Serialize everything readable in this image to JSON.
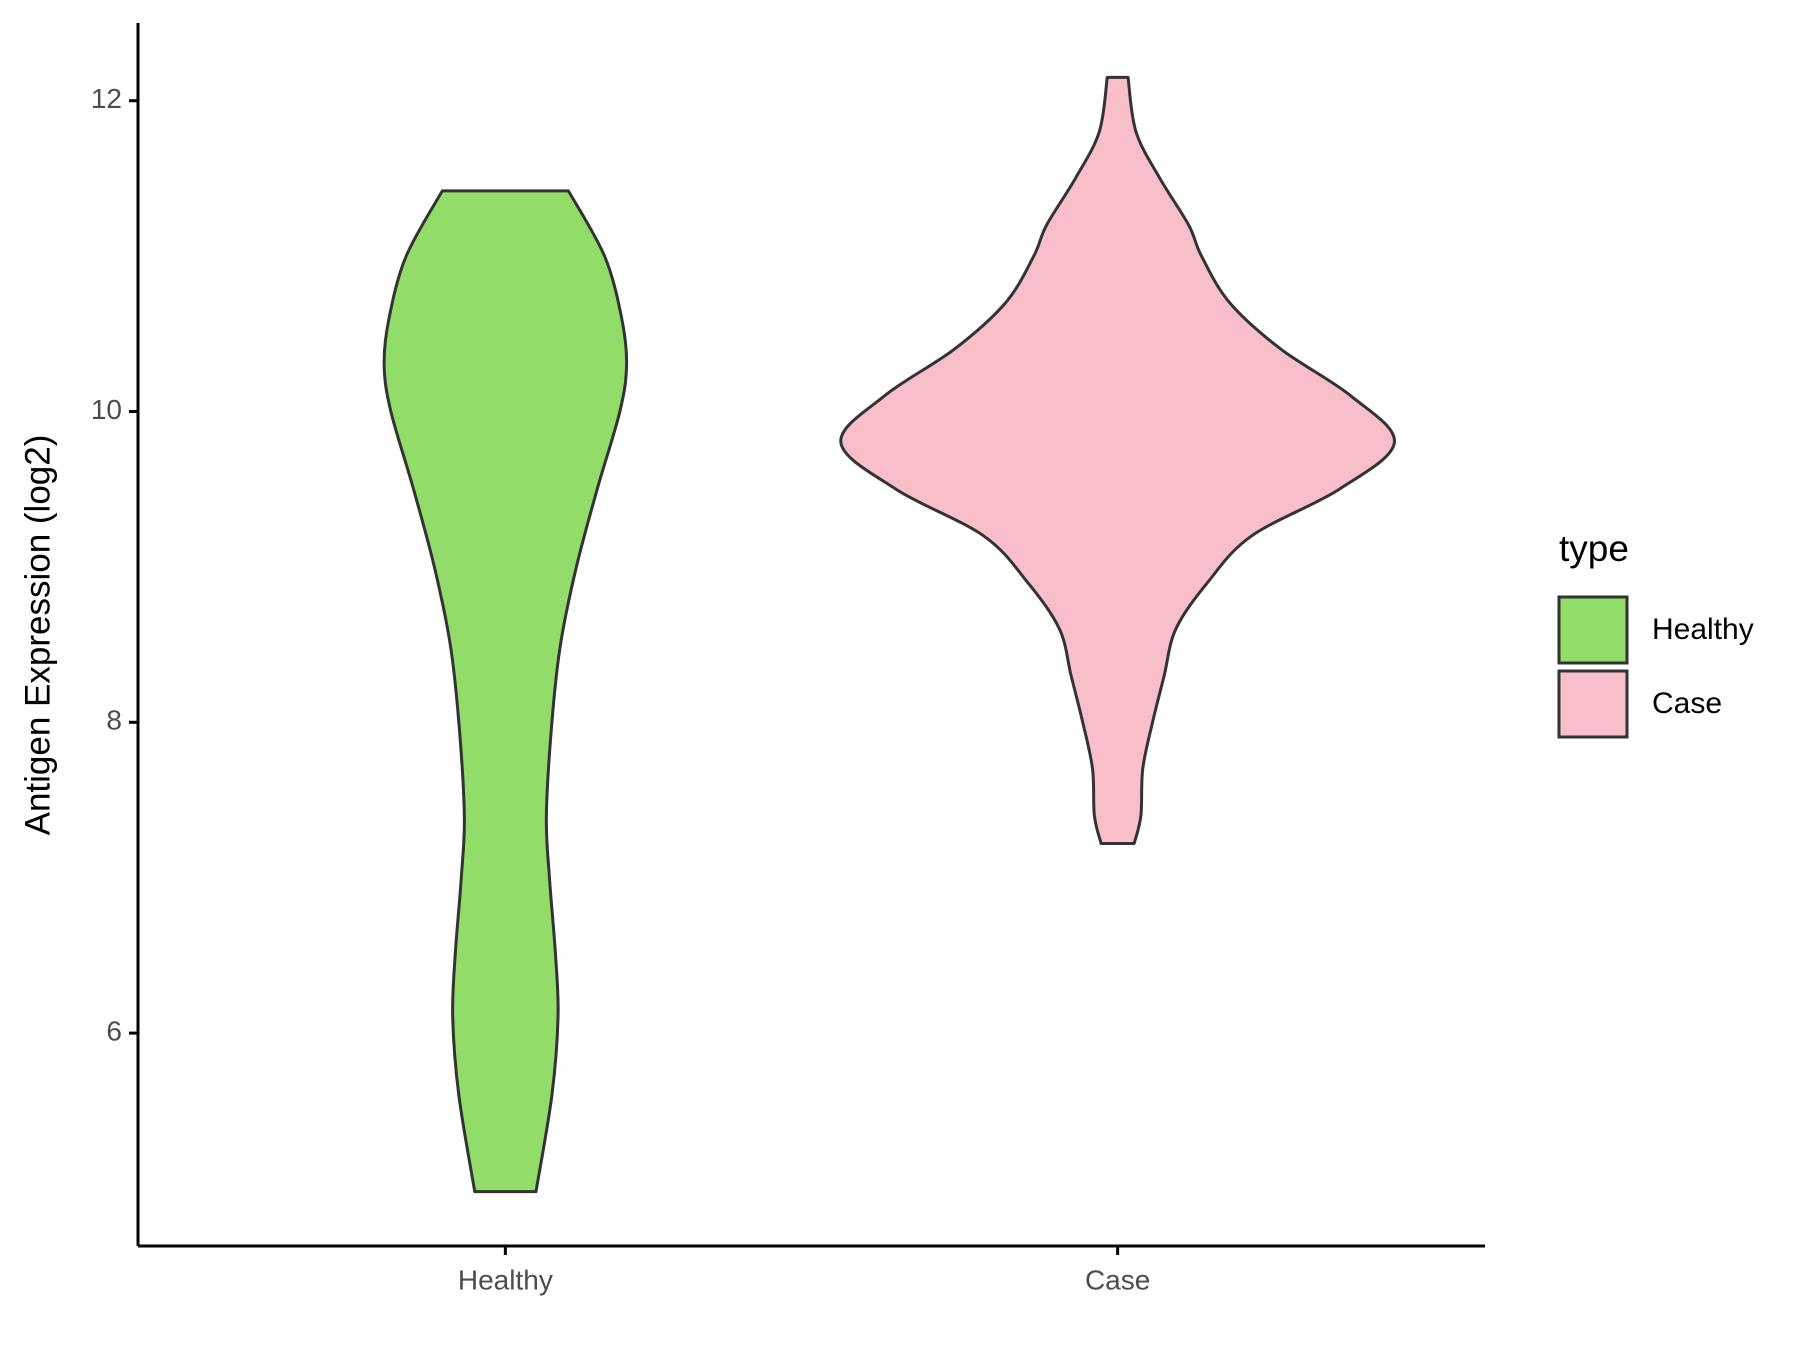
{
  "chart_data": {
    "type": "violin",
    "y_label": "Antigen Expression (log2)",
    "categories": [
      "Healthy",
      "Case"
    ],
    "legend_title": "type",
    "ylim": [
      4.63,
      12.5
    ],
    "yticks": [
      6,
      8,
      10,
      12
    ],
    "series": [
      {
        "name": "Healthy",
        "color": "#92dc6a",
        "y": [
          11.42,
          11.0,
          10.6,
          10.3,
          10.0,
          9.5,
          9.0,
          8.5,
          8.0,
          7.4,
          7.0,
          6.5,
          6.1,
          5.6,
          4.98
        ],
        "width": [
          0.103,
          0.162,
          0.19,
          0.198,
          0.187,
          0.15,
          0.116,
          0.09,
          0.076,
          0.067,
          0.072,
          0.082,
          0.086,
          0.076,
          0.05
        ]
      },
      {
        "name": "Case",
        "color": "#f8bfcb",
        "y": [
          12.15,
          11.8,
          11.5,
          11.2,
          11.0,
          10.7,
          10.4,
          10.1,
          9.8,
          9.5,
          9.2,
          8.9,
          8.6,
          8.3,
          8.0,
          7.7,
          7.4,
          7.22
        ],
        "width": [
          0.017,
          0.03,
          0.069,
          0.116,
          0.137,
          0.183,
          0.267,
          0.381,
          0.452,
          0.362,
          0.219,
          0.147,
          0.095,
          0.076,
          0.057,
          0.041,
          0.038,
          0.027
        ]
      }
    ]
  }
}
